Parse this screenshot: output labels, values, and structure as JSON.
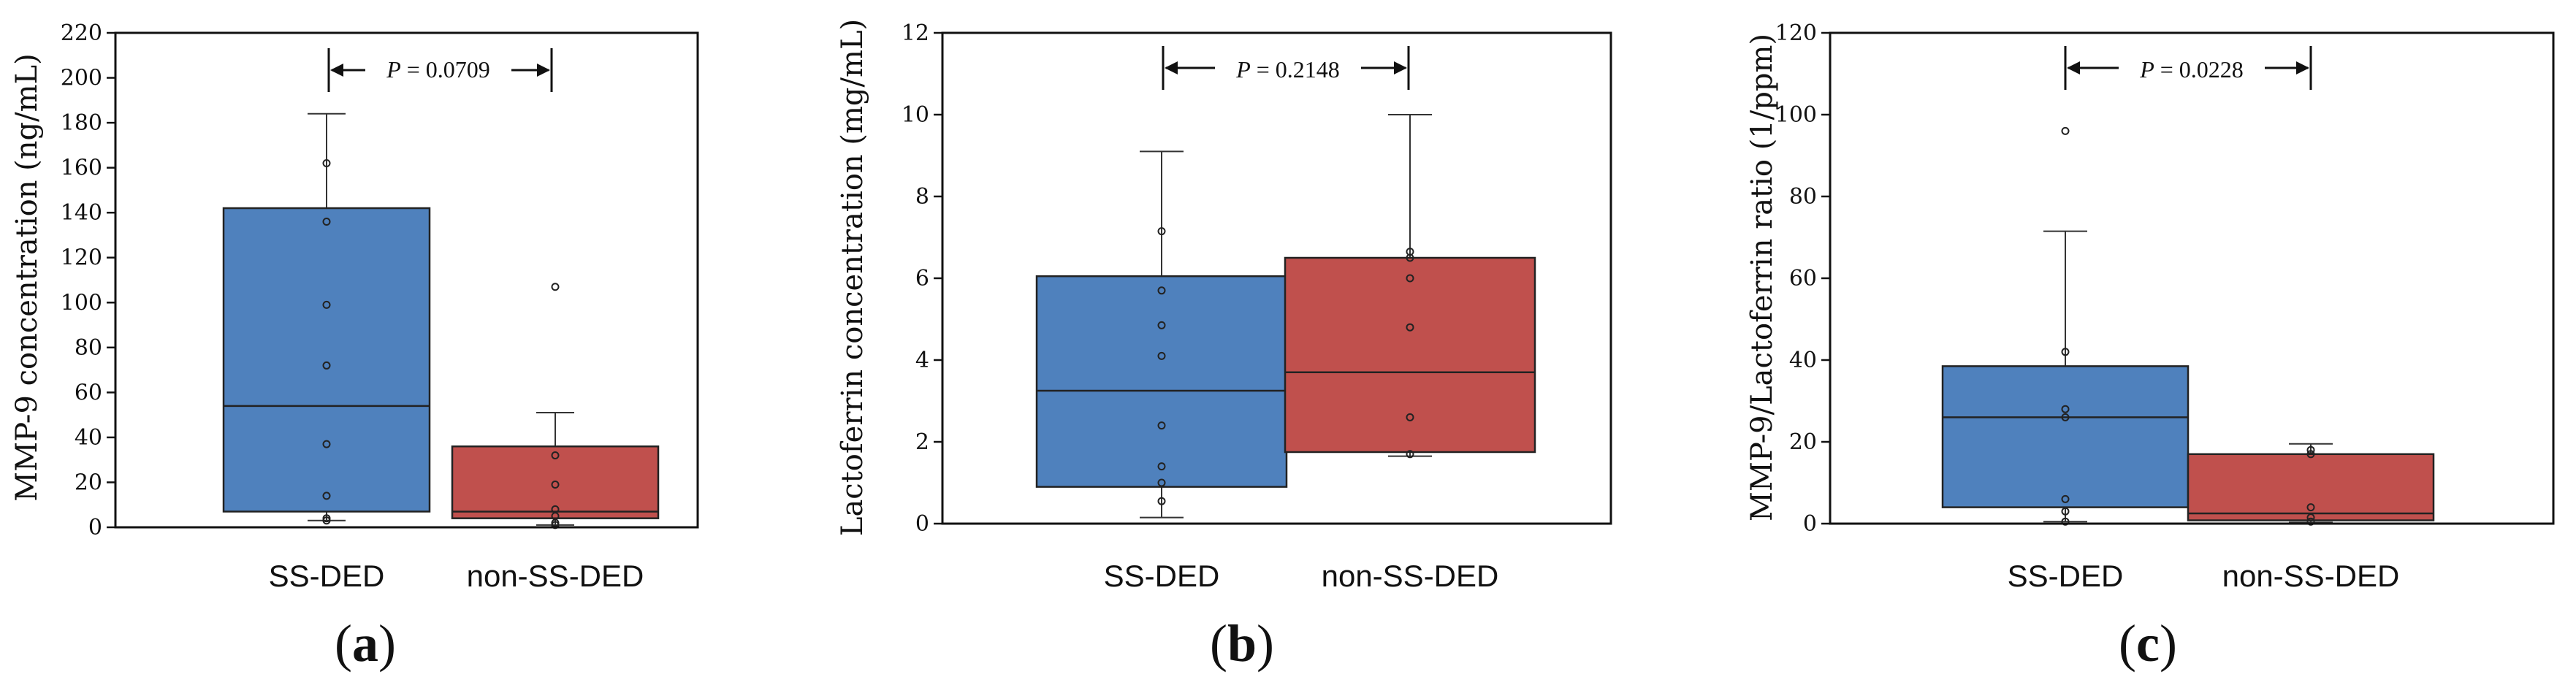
{
  "chart_data": [
    {
      "type": "box",
      "panel_label": "a",
      "ylabel": "MMP-9 concentration (ng/mL)",
      "ylim": [
        0,
        220
      ],
      "yticks": [
        0,
        20,
        40,
        60,
        80,
        100,
        120,
        140,
        160,
        180,
        200,
        220
      ],
      "categories": [
        "SS-DED",
        "non-SS-DED"
      ],
      "p_label": "P",
      "p_value": "= 0.0709",
      "colors": [
        "#4f81bd",
        "#c0504d"
      ],
      "boxes": [
        {
          "name": "SS-DED",
          "whisker_low": 3,
          "q1": 7,
          "median": 54,
          "q3": 142,
          "whisker_high": 184,
          "points": [
            3,
            4,
            14,
            37,
            72,
            99,
            136,
            162
          ]
        },
        {
          "name": "non-SS-DED",
          "whisker_low": 1,
          "q1": 4,
          "median": 7,
          "q3": 36,
          "whisker_high": 51,
          "points": [
            1,
            2,
            5,
            8,
            19,
            32,
            107
          ]
        }
      ]
    },
    {
      "type": "box",
      "panel_label": "b",
      "ylabel": "Lactoferrin concentration (mg/mL)",
      "ylim": [
        0,
        12
      ],
      "yticks": [
        0,
        2,
        4,
        6,
        8,
        10,
        12
      ],
      "categories": [
        "SS-DED",
        "non-SS-DED"
      ],
      "p_label": "P",
      "p_value": "= 0.2148",
      "colors": [
        "#4f81bd",
        "#c0504d"
      ],
      "boxes": [
        {
          "name": "SS-DED",
          "whisker_low": 0.15,
          "q1": 0.9,
          "median": 3.25,
          "q3": 6.05,
          "whisker_high": 9.1,
          "points": [
            0.55,
            1.0,
            1.4,
            2.4,
            4.1,
            4.85,
            5.7,
            7.15
          ]
        },
        {
          "name": "non-SS-DED",
          "whisker_low": 1.65,
          "q1": 1.75,
          "median": 3.7,
          "q3": 6.5,
          "whisker_high": 10.0,
          "points": [
            1.7,
            2.6,
            4.8,
            6.0,
            6.5,
            6.65
          ]
        }
      ]
    },
    {
      "type": "box",
      "panel_label": "c",
      "ylabel": "MMP-9/Lactoferrin ratio (1/ppm)",
      "ylim": [
        0,
        120
      ],
      "yticks": [
        0,
        20,
        40,
        60,
        80,
        100,
        120
      ],
      "categories": [
        "SS-DED",
        "non-SS-DED"
      ],
      "p_label": "P",
      "p_value": "= 0.0228",
      "colors": [
        "#4f81bd",
        "#c0504d"
      ],
      "boxes": [
        {
          "name": "SS-DED",
          "whisker_low": 0.5,
          "q1": 4,
          "median": 26,
          "q3": 38.5,
          "whisker_high": 71.5,
          "points": [
            0.5,
            3,
            6,
            26,
            28,
            42,
            96
          ]
        },
        {
          "name": "non-SS-DED",
          "whisker_low": 0.3,
          "q1": 0.8,
          "median": 2.5,
          "q3": 17,
          "whisker_high": 19.5,
          "points": [
            0.5,
            1.5,
            4,
            17,
            18
          ]
        }
      ]
    }
  ]
}
